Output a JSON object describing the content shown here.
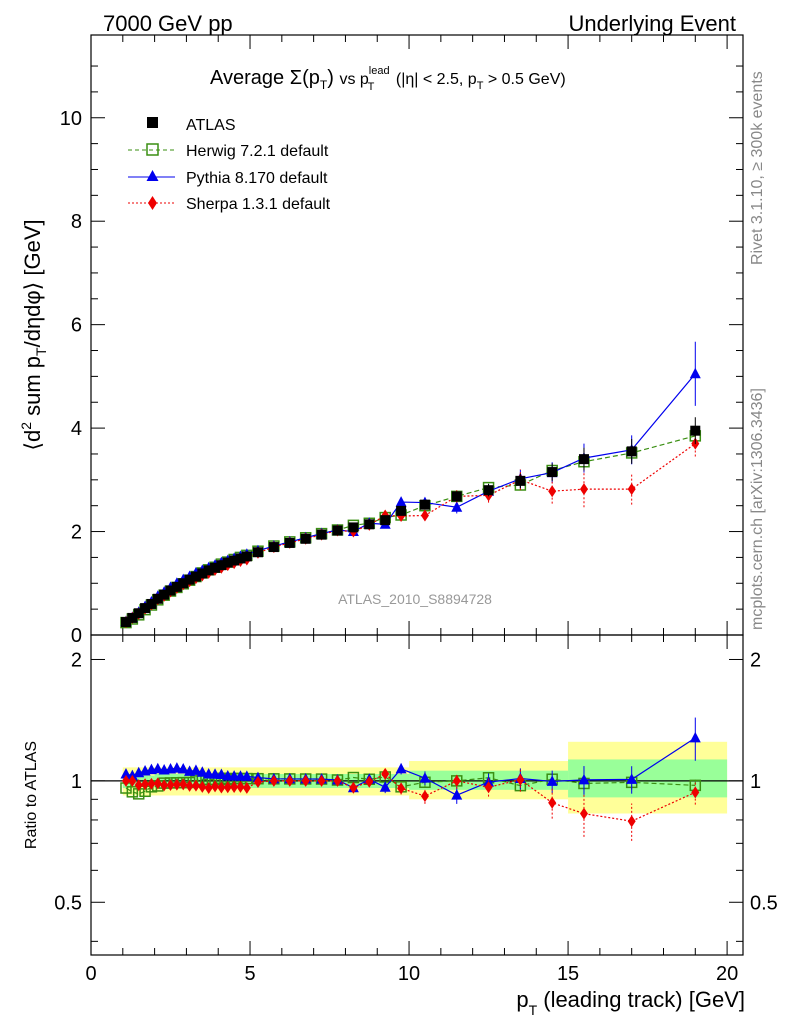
{
  "header": {
    "left": "7000 GeV pp",
    "right": "Underlying Event"
  },
  "title_parts": {
    "average": "Average",
    "sigma": "Σ(p",
    "T": "T",
    "close": ")",
    "vs": "vs p",
    "lead": "lead",
    "cut1": "(|η| < 2.5, p",
    "cut2": "> 0.5 GeV)"
  },
  "ylabel_main": "⟨d² sum p_T/dηdφ⟩ [GeV]",
  "ylabel_ratio": "Ratio to ATLAS",
  "xlabel": "p_T (leading track) [GeV]",
  "side_text_top": "Rivet 3.1.10, ≥ 300k events",
  "side_text_bottom": "mcplots.cern.ch [arXiv:1306.3436]",
  "watermark": "ATLAS_2010_S8894728",
  "colors": {
    "atlas": "#000000",
    "herwig": "#3a8f12",
    "pythia": "#0000ee",
    "sherpa": "#ee0000",
    "band_yellow": "#ffff99",
    "band_green": "#99ff99"
  },
  "chart_data": {
    "type": "line",
    "xlim": [
      0,
      20.5
    ],
    "ylim_main": [
      0,
      11.6
    ],
    "ylim_ratio": [
      0.37,
      2.3
    ],
    "ratio_log_scale": true,
    "x_ticks": [
      "0",
      "5",
      "10",
      "15",
      "20"
    ],
    "y_ticks_main": [
      "0",
      "2",
      "4",
      "6",
      "8",
      "10"
    ],
    "y_ticks_ratio": [
      "0.5",
      "1",
      "2"
    ],
    "x": [
      1.1,
      1.3,
      1.5,
      1.7,
      1.9,
      2.1,
      2.3,
      2.5,
      2.7,
      2.9,
      3.1,
      3.3,
      3.5,
      3.7,
      3.9,
      4.1,
      4.3,
      4.5,
      4.7,
      4.9,
      5.25,
      5.75,
      6.25,
      6.75,
      7.25,
      7.75,
      8.25,
      8.75,
      9.25,
      9.75,
      10.5,
      11.5,
      12.5,
      13.5,
      14.5,
      15.5,
      17.0,
      19.0
    ],
    "series": [
      {
        "name": "ATLAS",
        "values": [
          0.25,
          0.33,
          0.42,
          0.52,
          0.6,
          0.7,
          0.78,
          0.86,
          0.93,
          1.0,
          1.07,
          1.13,
          1.19,
          1.25,
          1.3,
          1.35,
          1.4,
          1.44,
          1.48,
          1.52,
          1.6,
          1.7,
          1.78,
          1.86,
          1.94,
          2.02,
          2.08,
          2.14,
          2.22,
          2.4,
          2.52,
          2.68,
          2.8,
          2.98,
          3.15,
          3.4,
          3.55,
          3.95
        ],
        "yerr": [
          0.01,
          0.01,
          0.01,
          0.01,
          0.01,
          0.01,
          0.02,
          0.02,
          0.02,
          0.02,
          0.02,
          0.02,
          0.02,
          0.02,
          0.02,
          0.02,
          0.02,
          0.03,
          0.03,
          0.03,
          0.03,
          0.03,
          0.03,
          0.04,
          0.04,
          0.04,
          0.05,
          0.05,
          0.06,
          0.07,
          0.08,
          0.1,
          0.12,
          0.14,
          0.17,
          0.22,
          0.24,
          0.26
        ]
      },
      {
        "name": "Herwig 7.2.1 default",
        "values": [
          0.24,
          0.31,
          0.39,
          0.49,
          0.58,
          0.68,
          0.77,
          0.85,
          0.92,
          0.99,
          1.06,
          1.13,
          1.2,
          1.26,
          1.31,
          1.37,
          1.41,
          1.46,
          1.5,
          1.54,
          1.62,
          1.72,
          1.8,
          1.88,
          1.96,
          2.03,
          2.12,
          2.16,
          2.27,
          2.32,
          2.5,
          2.68,
          2.85,
          2.9,
          3.18,
          3.35,
          3.52,
          3.85
        ],
        "yerr": [
          0,
          0,
          0,
          0,
          0,
          0,
          0,
          0,
          0,
          0,
          0,
          0,
          0,
          0,
          0,
          0,
          0,
          0,
          0,
          0,
          0,
          0,
          0,
          0,
          0,
          0,
          0,
          0.03,
          0.04,
          0.05,
          0.06,
          0.07,
          0.08,
          0.09,
          0.1,
          0.12,
          0.14,
          0.16
        ]
      },
      {
        "name": "Pythia 8.170 default",
        "values": [
          0.26,
          0.34,
          0.44,
          0.55,
          0.64,
          0.75,
          0.83,
          0.92,
          1.0,
          1.07,
          1.13,
          1.2,
          1.25,
          1.3,
          1.35,
          1.4,
          1.44,
          1.48,
          1.52,
          1.56,
          1.63,
          1.72,
          1.8,
          1.88,
          1.96,
          2.03,
          2.0,
          2.16,
          2.14,
          2.57,
          2.56,
          2.47,
          2.78,
          3.02,
          3.14,
          3.42,
          3.58,
          5.05
        ],
        "yerr": [
          0,
          0,
          0,
          0,
          0,
          0,
          0,
          0,
          0,
          0,
          0,
          0,
          0,
          0,
          0,
          0,
          0,
          0,
          0,
          0,
          0,
          0,
          0,
          0,
          0,
          0,
          0.05,
          0.06,
          0.07,
          0.08,
          0.1,
          0.12,
          0.14,
          0.18,
          0.2,
          0.28,
          0.28,
          0.62
        ]
      },
      {
        "name": "Sherpa 1.3.1 default",
        "values": [
          0.25,
          0.33,
          0.41,
          0.51,
          0.59,
          0.69,
          0.76,
          0.84,
          0.91,
          0.98,
          1.04,
          1.1,
          1.15,
          1.2,
          1.26,
          1.3,
          1.35,
          1.39,
          1.43,
          1.46,
          1.59,
          1.7,
          1.78,
          1.86,
          1.94,
          2.02,
          2.0,
          2.13,
          2.31,
          2.3,
          2.31,
          2.68,
          2.7,
          3.0,
          2.78,
          2.82,
          2.82,
          3.7
        ],
        "yerr": [
          0,
          0,
          0,
          0,
          0,
          0,
          0,
          0,
          0,
          0,
          0,
          0,
          0,
          0,
          0,
          0,
          0,
          0,
          0,
          0,
          0,
          0,
          0,
          0,
          0,
          0,
          0.05,
          0.06,
          0.07,
          0.08,
          0.1,
          0.12,
          0.14,
          0.2,
          0.24,
          0.35,
          0.3,
          0.25
        ]
      }
    ],
    "ratio_bands": {
      "x_edges": [
        1.0,
        10.0,
        15.0,
        20.0
      ],
      "yellow": [
        [
          0.92,
          1.08
        ],
        [
          0.9,
          1.12
        ],
        [
          0.83,
          1.25
        ]
      ],
      "green": [
        [
          0.96,
          1.04
        ],
        [
          0.95,
          1.06
        ],
        [
          0.91,
          1.13
        ]
      ]
    },
    "ratio_left_boxes": {
      "x": [
        1.1,
        1.3,
        1.5,
        1.7,
        1.9
      ],
      "yellow_half": [
        0.07,
        0.06,
        0.05,
        0.05,
        0.05
      ],
      "green_half": [
        0.04,
        0.03,
        0.03,
        0.03,
        0.03
      ]
    }
  }
}
